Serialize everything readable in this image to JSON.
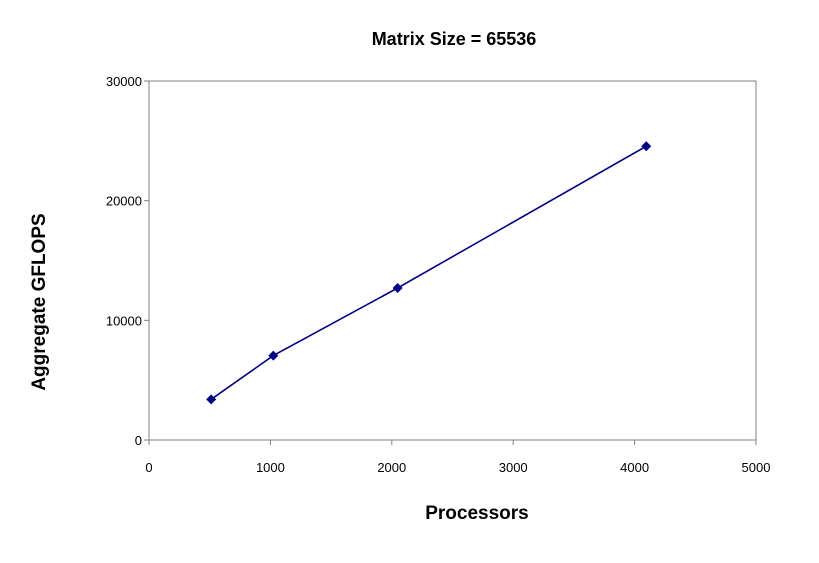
{
  "chart_data": {
    "type": "line",
    "title": "Matrix Size = 65536",
    "xlabel": "Processors",
    "ylabel": "Aggregate GFLOPS",
    "xlim": [
      0,
      5000
    ],
    "ylim": [
      0,
      30000
    ],
    "xticks": [
      0,
      1000,
      2000,
      3000,
      4000,
      5000
    ],
    "yticks": [
      0,
      10000,
      20000,
      30000
    ],
    "grid": false,
    "legend": "none",
    "series": [
      {
        "color": "#00007F",
        "marker": "diamond",
        "points": [
          {
            "x": 512,
            "y": 3400
          },
          {
            "x": 1024,
            "y": 7050
          },
          {
            "x": 2048,
            "y": 12700
          },
          {
            "x": 4096,
            "y": 24550
          }
        ]
      }
    ]
  }
}
